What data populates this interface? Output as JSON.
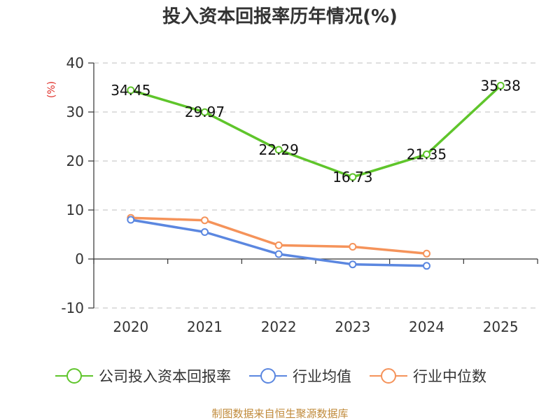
{
  "chart_data": {
    "type": "line",
    "title": "投入资本回报率历年情况(%)",
    "ylabel": "(%)",
    "categories": [
      "2020",
      "2021",
      "2022",
      "2023",
      "2024",
      "2025"
    ],
    "ylim": [
      -10,
      40
    ],
    "yticks": [
      -10,
      0,
      10,
      20,
      30,
      40
    ],
    "grid": true,
    "legend_position": "bottom",
    "series": [
      {
        "name": "公司投入资本回报率",
        "color": "#5fc52b",
        "values": [
          34.45,
          29.97,
          22.29,
          16.73,
          21.35,
          35.38
        ],
        "labels": [
          "34.45",
          "29.97",
          "22.29",
          "16.73",
          "21.35",
          "35.38"
        ]
      },
      {
        "name": "行业均值",
        "color": "#5b87e0",
        "values": [
          8.0,
          5.5,
          1.0,
          -1.1,
          -1.4,
          null
        ]
      },
      {
        "name": "行业中位数",
        "color": "#f5935a",
        "values": [
          8.4,
          7.9,
          2.8,
          2.5,
          1.1,
          null
        ]
      }
    ],
    "source": "制图数据来自恒生聚源数据库"
  }
}
